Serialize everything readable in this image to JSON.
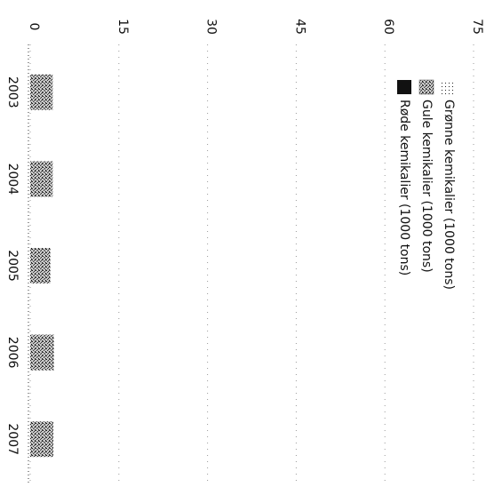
{
  "chart_data": {
    "type": "bar",
    "orientation": "rotated-90-clockwise",
    "stacked": true,
    "categories": [
      "2003",
      "2004",
      "2005",
      "2006",
      "2007"
    ],
    "series": [
      {
        "name": "Grønne kemikalier (1000 tons)",
        "pattern": "dotted",
        "values": [
          0,
          0,
          0,
          0,
          0
        ]
      },
      {
        "name": "Gule kemikalier (1000 tons)",
        "pattern": "stipple",
        "values": [
          3.8,
          3.8,
          3.4,
          4.0,
          3.9
        ]
      },
      {
        "name": "Røde kemikalier (1000 tons)",
        "pattern": "solid",
        "values": [
          0,
          0,
          0,
          0,
          0
        ]
      }
    ],
    "yticks": [
      0,
      15,
      30,
      45,
      60,
      75
    ],
    "ylim": [
      0,
      75
    ],
    "grid": "dotted",
    "legend": "top-left",
    "colors": {
      "solid": "#111111",
      "stipple": "#6a6a6a",
      "grid": "#9a9a9a"
    }
  }
}
